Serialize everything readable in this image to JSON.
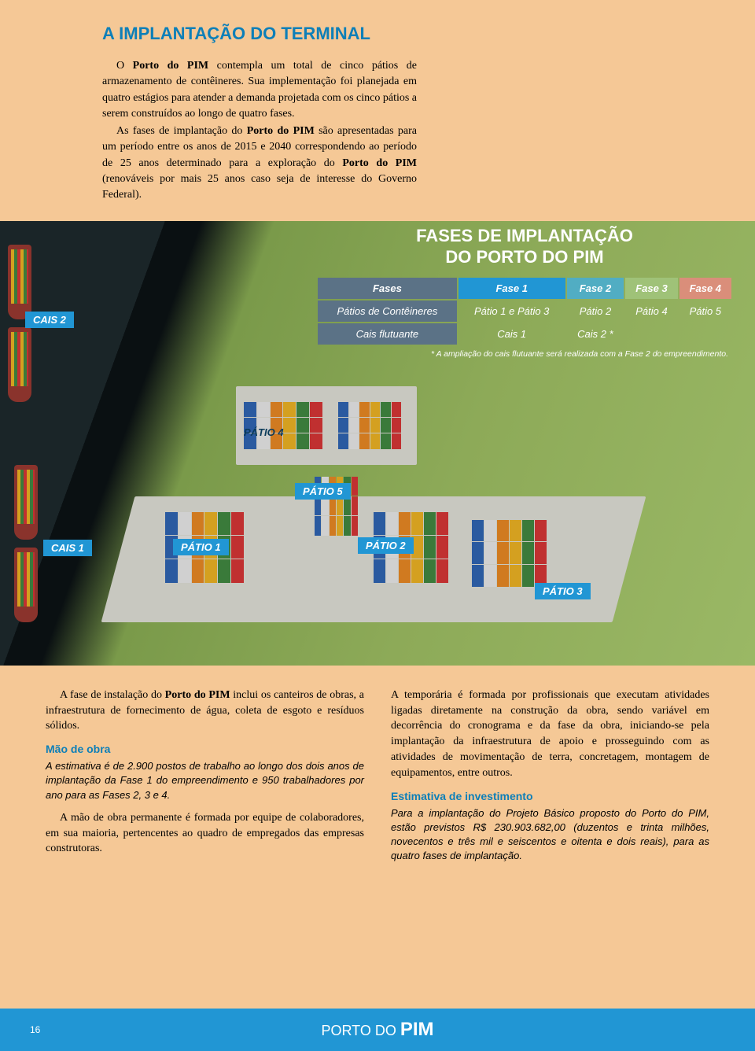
{
  "heading": "A IMPLANTAÇÃO DO TERMINAL",
  "intro": {
    "p1a": "O ",
    "p1b": "Porto do PIM",
    "p1c": " contempla um total de cinco pátios de armazenamento de contêineres. Sua implementação foi planejada em quatro estágios para atender a demanda projetada com os cinco pátios a serem construídos ao longo de quatro fases.",
    "p2a": "As fases de implantação do ",
    "p2b": "Porto do PIM",
    "p2c": " são apresentadas para um período entre os anos de 2015 e 2040 correspondendo ao período de 25 anos determinado para a exploração do ",
    "p2d": "Porto do PIM",
    "p2e": " (renováveis por mais 25 anos caso seja de interesse do Governo Federal)."
  },
  "map": {
    "overlay_title_l1": "FASES DE IMPLANTAÇÃO",
    "overlay_title_l2": "DO PORTO DO PIM",
    "table": {
      "header_color": "#5b7286",
      "col_labels": [
        "Fases",
        "Fase 1",
        "Fase 2",
        "Fase 3",
        "Fase 4"
      ],
      "col_colors": [
        "#5b7286",
        "#2196d4",
        "#51adc3",
        "#9fc278",
        "#da8e7a"
      ],
      "rows": [
        {
          "label": "Pátios de Contêineres",
          "cells": [
            "Pátio 1 e Pátio 3",
            "Pátio 2",
            "Pátio 4",
            "Pátio 5"
          ]
        },
        {
          "label": "Cais flutuante",
          "cells": [
            "Cais 1",
            "Cais 2 *",
            "",
            ""
          ]
        }
      ],
      "footnote": "* A ampliação do cais flutuante será realizada com a Fase 2 do empreendimento."
    },
    "labels": {
      "cais2": "CAIS 2",
      "cais1": "CAIS 1",
      "patio4": "PÁTIO 4",
      "patio5": "PÁTIO 5",
      "patio1": "PÁTIO 1",
      "patio2": "PÁTIO 2",
      "patio3": "PÁTIO 3"
    },
    "label_bg": "#2196d4",
    "terrain_green": "#8daa58",
    "water_dark": "#1a2528",
    "container_colors": [
      "#d4a020",
      "#3a7a3a",
      "#c03030",
      "#2a5aa0",
      "#d0d0d0",
      "#d07a20"
    ]
  },
  "bottom": {
    "left": {
      "p1a": "A fase de instalação do ",
      "p1b": "Porto do PIM",
      "p1c": " inclui os canteiros de obras, a infraestrutura de fornecimento de água, coleta de esgoto e resíduos sólidos.",
      "sub1": "Mão de obra",
      "note1": "A estimativa é de 2.900 postos de trabalho ao longo dos dois anos de implantação da Fase 1 do empreendimento e 950 trabalhadores por ano para as Fases 2, 3 e 4.",
      "p2": "A mão de obra permanente é formada por equipe de colaboradores, em sua maioria, pertencentes ao quadro de empregados das empresas construtoras."
    },
    "right": {
      "p1": "A temporária é formada por profissionais que executam atividades ligadas diretamente na construção da obra, sendo variável em decorrência do cronograma e da fase da obra, iniciando-se pela implantação da infraestrutura de apoio e prosseguindo com as atividades de movimentação de terra, concretagem, montagem de equipamentos, entre outros.",
      "sub1": "Estimativa de investimento",
      "note1": "Para a implantação do Projeto Básico proposto do Porto do PIM, estão previstos R$ 230.903.682,00 (duzentos e trinta milhões, novecentos e três mil e seiscentos e oitenta e dois reais), para as quatro fases de implantação."
    }
  },
  "footer": {
    "page": "16",
    "title_a": "PORTO DO ",
    "title_b": "PIM",
    "bar_color": "#2196d4"
  },
  "colors": {
    "page_bg": "#f5c896",
    "heading_blue": "#0d7fb8"
  }
}
